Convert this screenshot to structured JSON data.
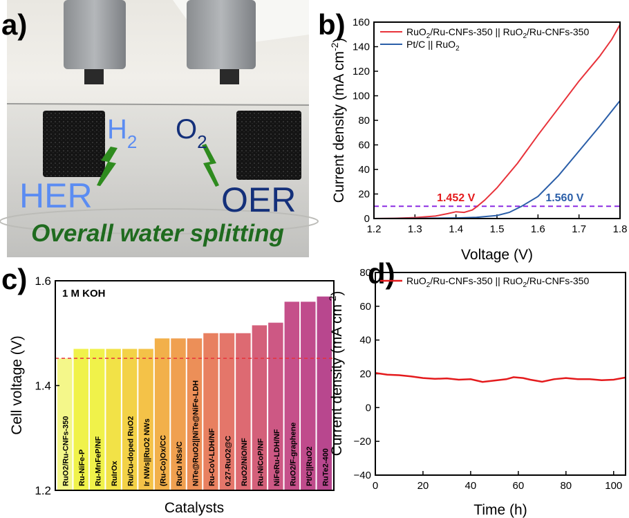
{
  "panels": {
    "a": {
      "label": "a)"
    },
    "b": {
      "label": "b)"
    },
    "c": {
      "label": "c)"
    },
    "d": {
      "label": "d)"
    }
  },
  "photo": {
    "her_label": "HER",
    "oer_label": "OER",
    "h2_main": "H",
    "h2_sub": "2",
    "o2_main": "O",
    "o2_sub": "2",
    "caption": "Overall water splitting",
    "colors": {
      "her": "#5b8cf2",
      "oer": "#14307a",
      "caption": "#1f6b1f",
      "bolt": "#2e8b1e"
    }
  },
  "chart_data": [
    {
      "panel": "b",
      "type": "line",
      "xlabel": "Voltage (V)",
      "ylabel_main": "Current density (mA cm",
      "ylabel_sup": "-2",
      "ylabel_tail": ")",
      "xlim": [
        1.2,
        1.8
      ],
      "ylim": [
        0,
        160
      ],
      "xticks": [
        1.2,
        1.3,
        1.4,
        1.5,
        1.6,
        1.7,
        1.8
      ],
      "yticks": [
        0,
        20,
        40,
        60,
        80,
        100,
        120,
        140,
        160
      ],
      "reference_line": {
        "y": 10,
        "color": "#8a2be2",
        "style": "dashed"
      },
      "legend_position": "top-left",
      "annotations": [
        {
          "text": "1.452 V",
          "x": 1.4,
          "y": 14,
          "color": "#e41a1c"
        },
        {
          "text": "1.560 V",
          "x": 1.665,
          "y": 14,
          "color": "#2a5ea8"
        }
      ],
      "series": [
        {
          "legend_main": "RuO",
          "legend_sub": "2",
          "legend_rest": "/Ru-CNFs-350 || RuO",
          "legend_sub2": "2",
          "legend_tail": "/Ru-CNFs-350",
          "color": "#e8323a",
          "x": [
            1.2,
            1.25,
            1.3,
            1.35,
            1.38,
            1.4,
            1.42,
            1.44,
            1.452,
            1.47,
            1.5,
            1.55,
            1.6,
            1.65,
            1.7,
            1.75,
            1.78,
            1.8
          ],
          "y": [
            0,
            0.2,
            0.8,
            2,
            4,
            5.5,
            5,
            7,
            10,
            15,
            25,
            45,
            68,
            90,
            112,
            132,
            146,
            158
          ]
        },
        {
          "legend_main": "Pt/C || RuO",
          "legend_sub": "2",
          "legend_rest": "",
          "legend_sub2": "",
          "legend_tail": "",
          "color": "#2a5ea8",
          "x": [
            1.2,
            1.3,
            1.4,
            1.45,
            1.5,
            1.53,
            1.56,
            1.6,
            1.65,
            1.7,
            1.75,
            1.8
          ],
          "y": [
            0,
            0.1,
            0.5,
            1,
            2.5,
            5,
            10,
            18,
            35,
            55,
            75,
            96
          ]
        }
      ]
    },
    {
      "panel": "c",
      "type": "bar",
      "xlabel": "Catalysts",
      "ylabel": "Cell voltage (V)",
      "ylim": [
        1.2,
        1.6
      ],
      "yticks": [
        1.2,
        1.4,
        1.6
      ],
      "annotation": "1 M KOH",
      "reference_line": {
        "y": 1.452,
        "color": "#e8323a",
        "style": "dashed"
      },
      "categories": [
        "RuO2/Ru-CNFs-350",
        "Ru-NiFe-P",
        "Ru-MnFeP/NF",
        "RuIrOx",
        "Ru/Cu-doped RuO2",
        "Ir NWs||RuO2 NWs",
        "(Ru-Co)Ox/CC",
        "RuCu NSs/C",
        "NiTe@RuO2||NiTe@NiFe-LDH",
        "Ru-CoV-LDH/NF",
        "0.27-RuO2@C",
        "RuO2/NiO/NF",
        "Ru-NiCoP/NF",
        "NiFeRu-LDH/NF",
        "RuO2/F-graphene",
        "Pt/C||RuO2",
        "RuTe2-400"
      ],
      "values": [
        1.452,
        1.47,
        1.47,
        1.47,
        1.47,
        1.47,
        1.49,
        1.49,
        1.49,
        1.5,
        1.5,
        1.5,
        1.515,
        1.52,
        1.56,
        1.56,
        1.57
      ],
      "colors": [
        "#f4f78a",
        "#f0f24a",
        "#f0f24a",
        "#f2e247",
        "#f3d247",
        "#f4c248",
        "#f2b04a",
        "#f0a050",
        "#ec8f58",
        "#e88060",
        "#e4766a",
        "#dd6a72",
        "#d4607a",
        "#cd5884",
        "#c5508a",
        "#c04b8c",
        "#b8478e"
      ]
    },
    {
      "panel": "d",
      "type": "line",
      "xlabel": "Time (h)",
      "ylabel_main": "Current density (mA cm",
      "ylabel_sup": "-2",
      "ylabel_tail": ")",
      "xlim": [
        0,
        105
      ],
      "ylim": [
        -40,
        80
      ],
      "xticks": [
        0,
        20,
        40,
        60,
        80,
        100
      ],
      "yticks": [
        -40,
        -20,
        0,
        20,
        40,
        60,
        80
      ],
      "legend_position": "top-left",
      "series": [
        {
          "legend_main": "RuO",
          "legend_sub": "2",
          "legend_rest": "/Ru-CNFs-350 || RuO",
          "legend_sub2": "2",
          "legend_tail": "/Ru-CNFs-350",
          "color": "#e41a1c",
          "x": [
            0,
            5,
            10,
            15,
            20,
            25,
            30,
            35,
            40,
            45,
            50,
            55,
            58,
            62,
            65,
            70,
            75,
            80,
            85,
            90,
            95,
            100,
            105
          ],
          "y": [
            20.5,
            19.5,
            19.2,
            18.5,
            17.5,
            17.0,
            17.3,
            16.5,
            16.8,
            15.2,
            16.0,
            16.8,
            18.0,
            17.5,
            16.5,
            15.3,
            16.8,
            17.5,
            16.8,
            16.8,
            16.2,
            16.5,
            17.8
          ]
        }
      ]
    }
  ]
}
